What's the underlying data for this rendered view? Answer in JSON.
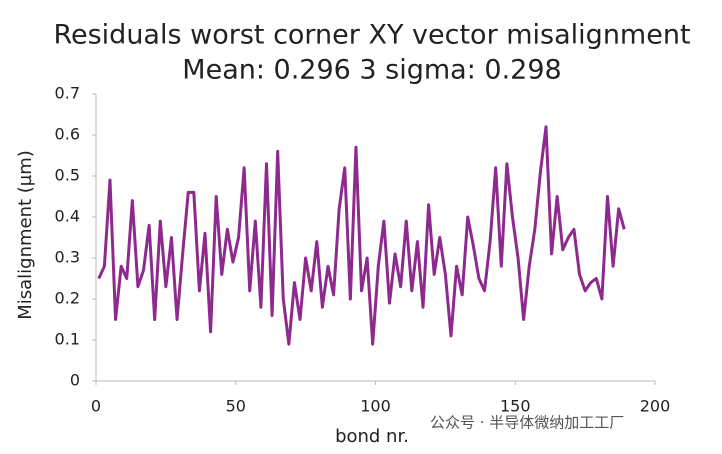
{
  "chart_data": {
    "type": "line",
    "title": "Residuals worst corner XY vector misalignment",
    "subtitle": "Mean: 0.296 3 sigma: 0.298",
    "x_label": "bond nr.",
    "y_label": "Misalignment (µm)",
    "watermark": "公众号 · 半导体微纳加工工厂",
    "color": "#8e2a8e",
    "grid": false,
    "xlim": [
      0,
      200
    ],
    "xticks": [
      0,
      50,
      100,
      150,
      200
    ],
    "ylim": [
      0,
      0.7
    ],
    "yticks": [
      0,
      0.1,
      0.2,
      0.3,
      0.4,
      0.5,
      0.6,
      0.7
    ],
    "x": [
      1,
      3,
      5,
      7,
      9,
      11,
      13,
      15,
      17,
      19,
      21,
      23,
      25,
      27,
      29,
      31,
      33,
      35,
      37,
      39,
      41,
      43,
      45,
      47,
      49,
      51,
      53,
      55,
      57,
      59,
      61,
      63,
      65,
      67,
      69,
      71,
      73,
      75,
      77,
      79,
      81,
      83,
      85,
      87,
      89,
      91,
      93,
      95,
      97,
      99,
      101,
      103,
      105,
      107,
      109,
      111,
      113,
      115,
      117,
      119,
      121,
      123,
      125,
      127,
      129,
      131,
      133,
      135,
      137,
      139,
      141,
      143,
      145,
      147,
      149,
      151,
      153,
      155,
      157,
      159,
      161,
      163,
      165,
      167,
      169,
      171,
      173,
      175,
      177,
      179,
      181,
      183,
      185,
      187,
      189
    ],
    "values": [
      0.25,
      0.28,
      0.49,
      0.15,
      0.28,
      0.25,
      0.44,
      0.23,
      0.27,
      0.38,
      0.15,
      0.39,
      0.23,
      0.35,
      0.15,
      0.31,
      0.46,
      0.46,
      0.22,
      0.36,
      0.12,
      0.45,
      0.26,
      0.37,
      0.29,
      0.35,
      0.52,
      0.22,
      0.39,
      0.18,
      0.53,
      0.16,
      0.56,
      0.2,
      0.09,
      0.24,
      0.15,
      0.3,
      0.22,
      0.34,
      0.18,
      0.28,
      0.21,
      0.42,
      0.52,
      0.2,
      0.57,
      0.22,
      0.3,
      0.09,
      0.28,
      0.39,
      0.19,
      0.31,
      0.23,
      0.39,
      0.22,
      0.34,
      0.18,
      0.43,
      0.26,
      0.35,
      0.26,
      0.11,
      0.28,
      0.21,
      0.4,
      0.33,
      0.25,
      0.22,
      0.34,
      0.52,
      0.28,
      0.53,
      0.4,
      0.3,
      0.15,
      0.28,
      0.37,
      0.51,
      0.62,
      0.31,
      0.45,
      0.32,
      0.35,
      0.37,
      0.26,
      0.22,
      0.24,
      0.25,
      0.2,
      0.45,
      0.28,
      0.42,
      0.37
    ]
  }
}
